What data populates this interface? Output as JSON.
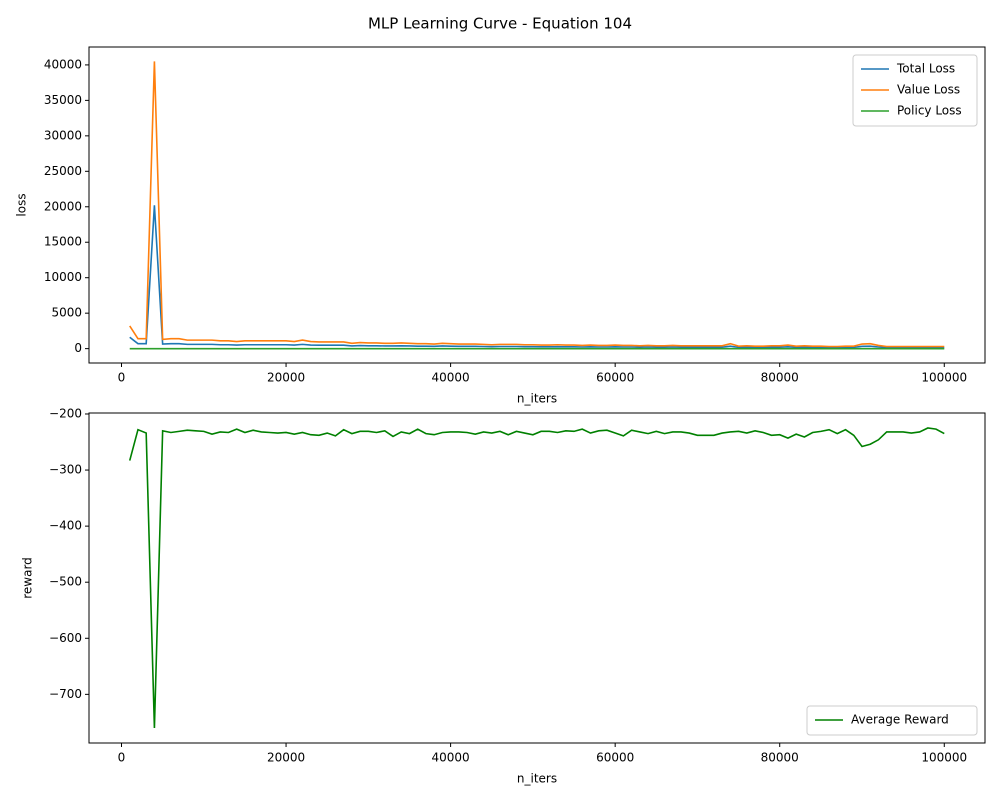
{
  "title": "MLP Learning Curve - Equation 104",
  "chart_data": [
    {
      "type": "line",
      "xlabel": "n_iters",
      "ylabel": "loss",
      "x": [
        1000,
        2000,
        3000,
        4000,
        5000,
        6000,
        7000,
        8000,
        9000,
        10000,
        11000,
        12000,
        13000,
        14000,
        15000,
        16000,
        17000,
        18000,
        19000,
        20000,
        21000,
        22000,
        23000,
        24000,
        25000,
        26000,
        27000,
        28000,
        29000,
        30000,
        31000,
        32000,
        33000,
        34000,
        35000,
        36000,
        37000,
        38000,
        39000,
        40000,
        41000,
        42000,
        43000,
        44000,
        45000,
        46000,
        47000,
        48000,
        49000,
        50000,
        51000,
        52000,
        53000,
        54000,
        55000,
        56000,
        57000,
        58000,
        59000,
        60000,
        61000,
        62000,
        63000,
        64000,
        65000,
        66000,
        67000,
        68000,
        69000,
        70000,
        71000,
        72000,
        73000,
        74000,
        75000,
        76000,
        77000,
        78000,
        79000,
        80000,
        81000,
        82000,
        83000,
        84000,
        85000,
        86000,
        87000,
        88000,
        89000,
        90000,
        91000,
        92000,
        93000,
        94000,
        95000,
        96000,
        97000,
        98000,
        99000,
        100000
      ],
      "series": [
        {
          "name": "Total Loss",
          "color": "#1f77b4",
          "values": [
            1600,
            700,
            700,
            20200,
            650,
            700,
            700,
            600,
            600,
            600,
            600,
            550,
            550,
            500,
            550,
            550,
            550,
            550,
            550,
            550,
            500,
            600,
            500,
            480,
            480,
            480,
            480,
            380,
            430,
            400,
            400,
            380,
            380,
            400,
            380,
            350,
            350,
            330,
            380,
            350,
            330,
            330,
            330,
            300,
            280,
            300,
            300,
            300,
            280,
            280,
            250,
            250,
            280,
            250,
            250,
            230,
            250,
            230,
            230,
            250,
            230,
            230,
            200,
            230,
            200,
            200,
            230,
            200,
            200,
            200,
            200,
            200,
            200,
            350,
            180,
            200,
            180,
            180,
            200,
            200,
            250,
            180,
            200,
            180,
            180,
            150,
            150,
            180,
            180,
            330,
            350,
            230,
            150,
            150,
            150,
            150,
            150,
            150,
            150,
            150
          ]
        },
        {
          "name": "Value Loss",
          "color": "#ff7f0e",
          "values": [
            3200,
            1400,
            1400,
            40500,
            1300,
            1400,
            1400,
            1200,
            1200,
            1200,
            1200,
            1100,
            1100,
            1000,
            1100,
            1100,
            1100,
            1100,
            1100,
            1100,
            1000,
            1200,
            1000,
            950,
            950,
            950,
            950,
            750,
            850,
            800,
            800,
            750,
            750,
            800,
            750,
            700,
            700,
            650,
            750,
            700,
            650,
            650,
            650,
            600,
            550,
            600,
            600,
            600,
            550,
            550,
            500,
            500,
            550,
            500,
            500,
            450,
            500,
            450,
            450,
            500,
            450,
            450,
            400,
            450,
            400,
            400,
            450,
            400,
            400,
            400,
            400,
            400,
            400,
            700,
            350,
            400,
            350,
            350,
            400,
            400,
            500,
            350,
            400,
            350,
            350,
            300,
            300,
            350,
            350,
            650,
            700,
            450,
            300,
            300,
            300,
            300,
            300,
            300,
            300,
            300
          ]
        },
        {
          "name": "Policy Loss",
          "color": "#2ca02c",
          "values": [
            0,
            0,
            0,
            0,
            0,
            0,
            0,
            0,
            0,
            0,
            0,
            0,
            0,
            0,
            0,
            0,
            0,
            0,
            0,
            0,
            0,
            0,
            0,
            0,
            0,
            0,
            0,
            0,
            0,
            0,
            0,
            0,
            0,
            0,
            0,
            0,
            0,
            0,
            0,
            0,
            0,
            0,
            0,
            0,
            0,
            0,
            0,
            0,
            0,
            0,
            0,
            0,
            0,
            0,
            0,
            0,
            0,
            0,
            0,
            0,
            0,
            0,
            0,
            0,
            0,
            0,
            0,
            0,
            0,
            0,
            0,
            0,
            0,
            0,
            0,
            0,
            0,
            0,
            0,
            0,
            0,
            0,
            0,
            0,
            0,
            0,
            0,
            0,
            0,
            0,
            0,
            0,
            0,
            0,
            0,
            0,
            0,
            0,
            0,
            0
          ]
        }
      ],
      "xlim": [
        -3950,
        104950
      ],
      "xticks": [
        0,
        20000,
        40000,
        60000,
        80000,
        100000
      ],
      "ylim": [
        -2025,
        42525
      ],
      "yticks": [
        0,
        5000,
        10000,
        15000,
        20000,
        25000,
        30000,
        35000,
        40000
      ],
      "legend": "upper right",
      "grid": false
    },
    {
      "type": "line",
      "xlabel": "n_iters",
      "ylabel": "reward",
      "x": [
        1000,
        2000,
        3000,
        4000,
        5000,
        6000,
        7000,
        8000,
        9000,
        10000,
        11000,
        12000,
        13000,
        14000,
        15000,
        16000,
        17000,
        18000,
        19000,
        20000,
        21000,
        22000,
        23000,
        24000,
        25000,
        26000,
        27000,
        28000,
        29000,
        30000,
        31000,
        32000,
        33000,
        34000,
        35000,
        36000,
        37000,
        38000,
        39000,
        40000,
        41000,
        42000,
        43000,
        44000,
        45000,
        46000,
        47000,
        48000,
        49000,
        50000,
        51000,
        52000,
        53000,
        54000,
        55000,
        56000,
        57000,
        58000,
        59000,
        60000,
        61000,
        62000,
        63000,
        64000,
        65000,
        66000,
        67000,
        68000,
        69000,
        70000,
        71000,
        72000,
        73000,
        74000,
        75000,
        76000,
        77000,
        78000,
        79000,
        80000,
        81000,
        82000,
        83000,
        84000,
        85000,
        86000,
        87000,
        88000,
        89000,
        90000,
        91000,
        92000,
        93000,
        94000,
        95000,
        96000,
        97000,
        98000,
        99000,
        100000
      ],
      "series": [
        {
          "name": "Average Reward",
          "color": "#008000",
          "values": [
            -283,
            -228,
            -234,
            -760,
            -230,
            -233,
            -231,
            -229,
            -230,
            -231,
            -236,
            -232,
            -233,
            -227,
            -233,
            -229,
            -232,
            -233,
            -234,
            -233,
            -236,
            -233,
            -237,
            -238,
            -234,
            -239,
            -228,
            -235,
            -231,
            -231,
            -233,
            -230,
            -240,
            -232,
            -235,
            -227,
            -235,
            -237,
            -233,
            -232,
            -232,
            -233,
            -236,
            -232,
            -234,
            -231,
            -237,
            -231,
            -234,
            -237,
            -231,
            -231,
            -233,
            -230,
            -231,
            -227,
            -234,
            -230,
            -229,
            -234,
            -239,
            -229,
            -232,
            -235,
            -231,
            -235,
            -232,
            -232,
            -234,
            -238,
            -238,
            -238,
            -234,
            -232,
            -231,
            -234,
            -230,
            -233,
            -238,
            -237,
            -243,
            -236,
            -241,
            -233,
            -231,
            -228,
            -235,
            -228,
            -238,
            -258,
            -254,
            -246,
            -232,
            -232,
            -232,
            -234,
            -232,
            -225,
            -227,
            -235
          ]
        }
      ],
      "xlim": [
        -3950,
        104950
      ],
      "xticks": [
        0,
        20000,
        40000,
        60000,
        80000,
        100000
      ],
      "ylim": [
        -786.75,
        -198.25
      ],
      "yticks": [
        {
          "value": -700,
          "label": "−700"
        },
        {
          "value": -600,
          "label": "−600"
        },
        {
          "value": -500,
          "label": "−500"
        },
        {
          "value": -400,
          "label": "−400"
        },
        {
          "value": -300,
          "label": "−300"
        },
        {
          "value": -200,
          "label": "−200"
        }
      ],
      "legend": "lower right",
      "grid": false
    }
  ]
}
